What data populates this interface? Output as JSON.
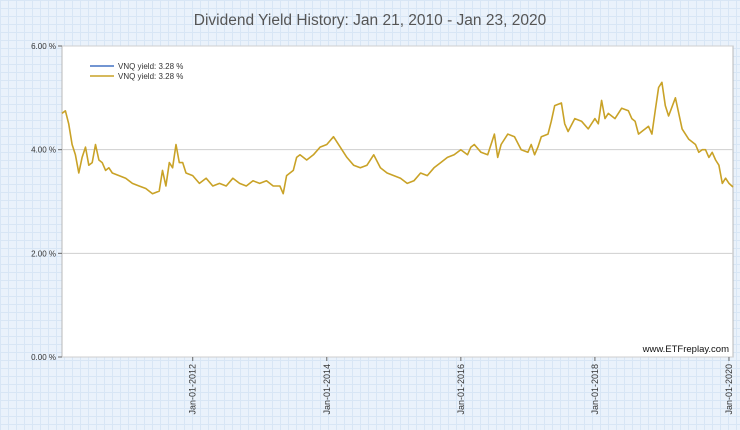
{
  "chart_data": {
    "type": "line",
    "title": "Dividend Yield History: Jan 21, 2010 - Jan 23, 2020",
    "xlabel": "",
    "ylabel": "",
    "xlim": [
      2010.05,
      2020.06
    ],
    "ylim": [
      0,
      6
    ],
    "y_ticks": [
      {
        "value": 6,
        "label": "6.00 %"
      },
      {
        "value": 4,
        "label": "4.00 %"
      },
      {
        "value": 2,
        "label": "2.00 %"
      },
      {
        "value": 0,
        "label": "0.00 %"
      }
    ],
    "x_ticks": [
      {
        "value": 2012.0,
        "label": "Jan-01-2012"
      },
      {
        "value": 2014.0,
        "label": "Jan-01-2014"
      },
      {
        "value": 2016.0,
        "label": "Jan-01-2016"
      },
      {
        "value": 2018.0,
        "label": "Jan-01-2018"
      },
      {
        "value": 2020.0,
        "label": "Jan-01-2020"
      }
    ],
    "grid": true,
    "legend_position": "top-left",
    "legend": [
      {
        "label": "VNQ yield: 3.28 %",
        "color": "#4472c4"
      },
      {
        "label": "VNQ yield: 3.28 %",
        "color": "#c9a227"
      }
    ],
    "watermark": "www.ETFreplay.com",
    "series": [
      {
        "name": "VNQ yield",
        "color": "#c9a227",
        "x": [
          2010.05,
          2010.1,
          2010.15,
          2010.2,
          2010.25,
          2010.3,
          2010.35,
          2010.4,
          2010.45,
          2010.5,
          2010.55,
          2010.6,
          2010.65,
          2010.7,
          2010.75,
          2010.8,
          2010.9,
          2011.0,
          2011.1,
          2011.2,
          2011.3,
          2011.4,
          2011.5,
          2011.55,
          2011.6,
          2011.65,
          2011.7,
          2011.75,
          2011.8,
          2011.85,
          2011.9,
          2012.0,
          2012.1,
          2012.2,
          2012.3,
          2012.4,
          2012.5,
          2012.6,
          2012.7,
          2012.8,
          2012.9,
          2013.0,
          2013.1,
          2013.2,
          2013.3,
          2013.35,
          2013.4,
          2013.5,
          2013.55,
          2013.6,
          2013.7,
          2013.8,
          2013.9,
          2014.0,
          2014.1,
          2014.2,
          2014.3,
          2014.4,
          2014.5,
          2014.6,
          2014.7,
          2014.8,
          2014.9,
          2015.0,
          2015.1,
          2015.2,
          2015.3,
          2015.4,
          2015.5,
          2015.6,
          2015.7,
          2015.8,
          2015.9,
          2016.0,
          2016.1,
          2016.15,
          2016.2,
          2016.3,
          2016.4,
          2016.5,
          2016.55,
          2016.6,
          2016.7,
          2016.8,
          2016.9,
          2017.0,
          2017.05,
          2017.1,
          2017.15,
          2017.2,
          2017.3,
          2017.35,
          2017.4,
          2017.5,
          2017.55,
          2017.6,
          2017.7,
          2017.8,
          2017.9,
          2018.0,
          2018.05,
          2018.1,
          2018.15,
          2018.2,
          2018.3,
          2018.4,
          2018.5,
          2018.55,
          2018.6,
          2018.65,
          2018.7,
          2018.75,
          2018.8,
          2018.85,
          2018.9,
          2018.95,
          2019.0,
          2019.05,
          2019.1,
          2019.2,
          2019.3,
          2019.4,
          2019.5,
          2019.55,
          2019.6,
          2019.65,
          2019.7,
          2019.75,
          2019.8,
          2019.85,
          2019.9,
          2019.95,
          2020.0,
          2020.06
        ],
        "values": [
          4.7,
          4.75,
          4.5,
          4.1,
          3.9,
          3.55,
          3.85,
          4.05,
          3.7,
          3.75,
          4.1,
          3.8,
          3.75,
          3.6,
          3.65,
          3.55,
          3.5,
          3.45,
          3.35,
          3.3,
          3.25,
          3.15,
          3.2,
          3.6,
          3.3,
          3.75,
          3.65,
          4.1,
          3.75,
          3.75,
          3.55,
          3.5,
          3.35,
          3.45,
          3.3,
          3.35,
          3.3,
          3.45,
          3.35,
          3.3,
          3.4,
          3.35,
          3.4,
          3.3,
          3.3,
          3.15,
          3.5,
          3.6,
          3.85,
          3.9,
          3.8,
          3.9,
          4.05,
          4.1,
          4.25,
          4.05,
          3.85,
          3.7,
          3.65,
          3.7,
          3.9,
          3.65,
          3.55,
          3.5,
          3.45,
          3.35,
          3.4,
          3.55,
          3.5,
          3.65,
          3.75,
          3.85,
          3.9,
          4.0,
          3.9,
          4.05,
          4.1,
          3.95,
          3.9,
          4.3,
          3.85,
          4.1,
          4.3,
          4.25,
          4.0,
          3.95,
          4.1,
          3.9,
          4.05,
          4.25,
          4.3,
          4.55,
          4.85,
          4.9,
          4.5,
          4.35,
          4.6,
          4.55,
          4.4,
          4.6,
          4.5,
          4.95,
          4.6,
          4.7,
          4.6,
          4.8,
          4.75,
          4.6,
          4.55,
          4.3,
          4.35,
          4.4,
          4.45,
          4.3,
          4.75,
          5.2,
          5.3,
          4.85,
          4.65,
          5.0,
          4.4,
          4.2,
          4.1,
          3.95,
          4.0,
          4.0,
          3.85,
          3.95,
          3.8,
          3.7,
          3.35,
          3.45,
          3.35,
          3.28
        ]
      }
    ]
  }
}
